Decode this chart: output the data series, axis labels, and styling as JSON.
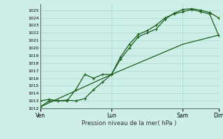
{
  "xlabel": "Pression niveau de la mer( hPa )",
  "ylim": [
    1012,
    1025.8
  ],
  "yticks": [
    1012,
    1013,
    1014,
    1015,
    1016,
    1017,
    1018,
    1019,
    1020,
    1021,
    1022,
    1023,
    1024,
    1025
  ],
  "bg_color": "#ceeee8",
  "line_color": "#1a5c1a",
  "grid_color": "#a8d8d0",
  "xtick_labels": [
    "Ven",
    "Lun",
    "Sam",
    "Dim"
  ],
  "xtick_positions": [
    0,
    48,
    96,
    120
  ],
  "x_max": 120,
  "series1_x": [
    0,
    6,
    12,
    18,
    24,
    30,
    36,
    42,
    48,
    54,
    60,
    66,
    72,
    78,
    84,
    90,
    96,
    102,
    108,
    114,
    120
  ],
  "series1_y": [
    1012.2,
    1013.0,
    1013.0,
    1013.1,
    1013.0,
    1013.3,
    1014.5,
    1015.5,
    1016.5,
    1018.5,
    1020.0,
    1021.5,
    1022.0,
    1022.5,
    1023.8,
    1024.6,
    1025.1,
    1025.2,
    1025.0,
    1024.7,
    1024.0
  ],
  "series2_x": [
    0,
    6,
    12,
    18,
    24,
    30,
    36,
    42,
    48,
    54,
    60,
    66,
    72,
    78,
    84,
    90,
    96,
    102,
    108,
    114,
    120
  ],
  "series2_y": [
    1013.0,
    1013.2,
    1013.0,
    1013.0,
    1014.5,
    1016.5,
    1016.0,
    1016.5,
    1016.5,
    1018.8,
    1020.5,
    1021.8,
    1022.3,
    1023.0,
    1024.0,
    1024.5,
    1024.8,
    1025.1,
    1024.8,
    1024.5,
    1021.7
  ],
  "series3_x": [
    0,
    48,
    96,
    120
  ],
  "series3_y": [
    1012.2,
    1016.5,
    1020.5,
    1021.7
  ]
}
